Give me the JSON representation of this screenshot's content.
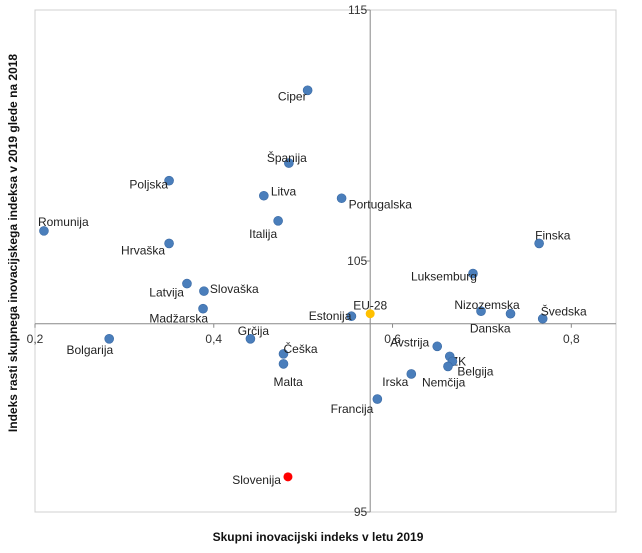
{
  "chart_data": {
    "type": "scatter",
    "title": "",
    "xlabel": "Skupni inovacijski indeks v letu 2019",
    "ylabel": "Indeks rasti skupnega inovacijskega indeksa v 2019 glede na 2018",
    "xlim": [
      0.2,
      0.85
    ],
    "ylim": [
      95,
      115
    ],
    "x_ticks": [
      "0,2",
      "0,4",
      "0,6",
      "0,8"
    ],
    "y_ticks": [
      "95",
      "105",
      "115"
    ],
    "x_cross": 0.575,
    "y_cross": 102.5,
    "grid": false,
    "colors": {
      "default": "#4a7ebb",
      "highlight": "#ff0000",
      "eu": "#ffc000",
      "axis": "#888888"
    },
    "points": [
      {
        "name": "Ciper",
        "x": 0.505,
        "y": 111.8
      },
      {
        "name": "Španija",
        "x": 0.484,
        "y": 108.9
      },
      {
        "name": "Poljska",
        "x": 0.35,
        "y": 108.2
      },
      {
        "name": "Litva",
        "x": 0.456,
        "y": 107.6
      },
      {
        "name": "Portugalska",
        "x": 0.543,
        "y": 107.5
      },
      {
        "name": "Italija",
        "x": 0.472,
        "y": 106.6
      },
      {
        "name": "Romunija",
        "x": 0.21,
        "y": 106.2
      },
      {
        "name": "Finska",
        "x": 0.764,
        "y": 105.7
      },
      {
        "name": "Hrvaška",
        "x": 0.35,
        "y": 105.7
      },
      {
        "name": "Luksemburg",
        "x": 0.69,
        "y": 104.5
      },
      {
        "name": "Latvija",
        "x": 0.37,
        "y": 104.1
      },
      {
        "name": "Slovaška",
        "x": 0.389,
        "y": 103.8
      },
      {
        "name": "Madžarska",
        "x": 0.388,
        "y": 103.1
      },
      {
        "name": "Nizozemska",
        "x": 0.699,
        "y": 103.0
      },
      {
        "name": "Danska",
        "x": 0.732,
        "y": 102.9
      },
      {
        "name": "Švedska",
        "x": 0.768,
        "y": 102.7
      },
      {
        "name": "Estonija",
        "x": 0.554,
        "y": 102.8
      },
      {
        "name": "EU-28",
        "x": 0.575,
        "y": 102.9
      },
      {
        "name": "Grčija",
        "x": 0.441,
        "y": 101.9
      },
      {
        "name": "Bolgarija",
        "x": 0.283,
        "y": 101.9
      },
      {
        "name": "Češka",
        "x": 0.478,
        "y": 101.3
      },
      {
        "name": "Malta",
        "x": 0.478,
        "y": 100.9
      },
      {
        "name": "Avstrija",
        "x": 0.65,
        "y": 101.6
      },
      {
        "name": "ZK",
        "x": 0.664,
        "y": 101.2
      },
      {
        "name": "Belgija",
        "x": 0.667,
        "y": 101.0
      },
      {
        "name": "Nemčija",
        "x": 0.662,
        "y": 100.8
      },
      {
        "name": "Irska",
        "x": 0.621,
        "y": 100.5
      },
      {
        "name": "Francija",
        "x": 0.583,
        "y": 99.5
      },
      {
        "name": "Slovenija",
        "x": 0.483,
        "y": 96.4
      }
    ]
  }
}
